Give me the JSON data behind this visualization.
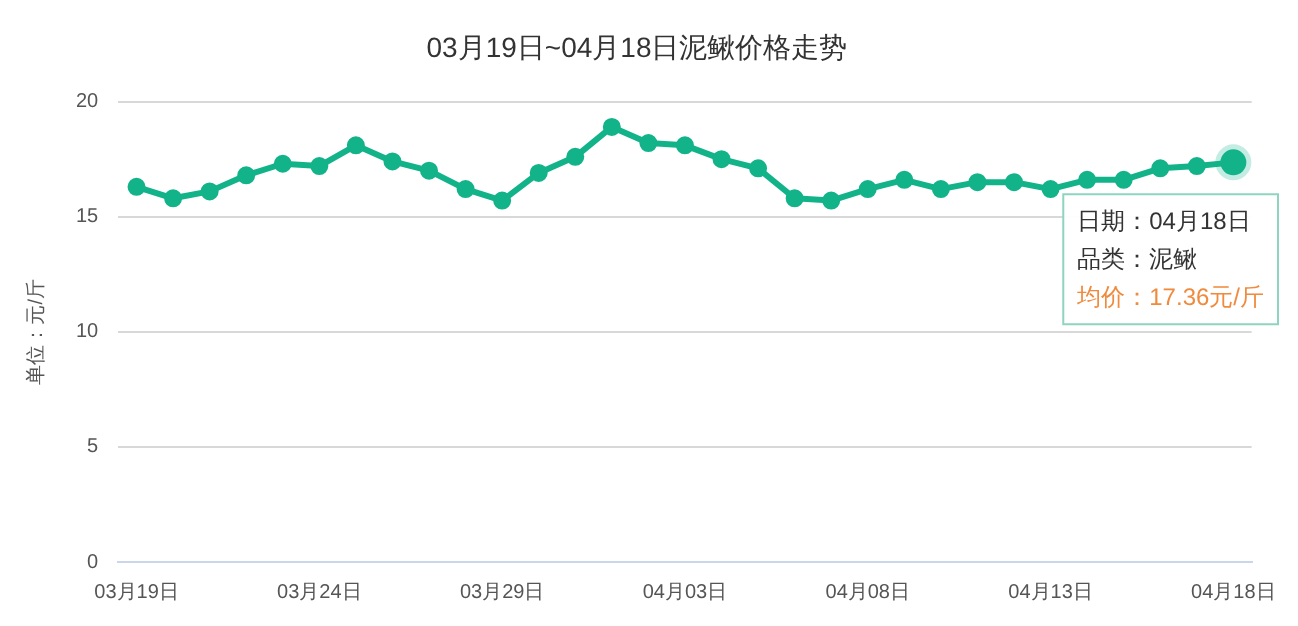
{
  "chart_data": {
    "type": "line",
    "title": "03月19日~04月18日泥鳅价格走势",
    "ylabel": "单位：元/斤",
    "categories": [
      "03月19日",
      null,
      null,
      null,
      null,
      "03月24日",
      null,
      null,
      null,
      null,
      "03月29日",
      null,
      null,
      null,
      null,
      "04月03日",
      null,
      null,
      null,
      null,
      "04月08日",
      null,
      null,
      null,
      null,
      "04月13日",
      null,
      null,
      null,
      null,
      "04月18日"
    ],
    "series": [
      {
        "color": "#13b38a",
        "values": [
          16.3,
          15.8,
          16.1,
          16.8,
          17.3,
          17.2,
          18.1,
          17.4,
          17.0,
          16.2,
          15.7,
          16.9,
          17.6,
          18.9,
          18.2,
          18.1,
          17.5,
          17.1,
          15.8,
          15.7,
          16.2,
          16.6,
          16.2,
          16.5,
          16.5,
          16.2,
          16.6,
          16.6,
          17.1,
          17.2,
          17.36
        ]
      }
    ],
    "ylim": [
      0,
      20
    ],
    "yticks": [
      0,
      5,
      10,
      15,
      20
    ],
    "grid": "y",
    "legend": false,
    "marker": "circle",
    "line_style": "solid",
    "annotations": [
      {
        "text": "日期：04月18日",
        "x": "04月18日",
        "y": 17.36
      },
      "品类：泥鳅",
      "均价：17.36元/斤"
    ]
  }
}
